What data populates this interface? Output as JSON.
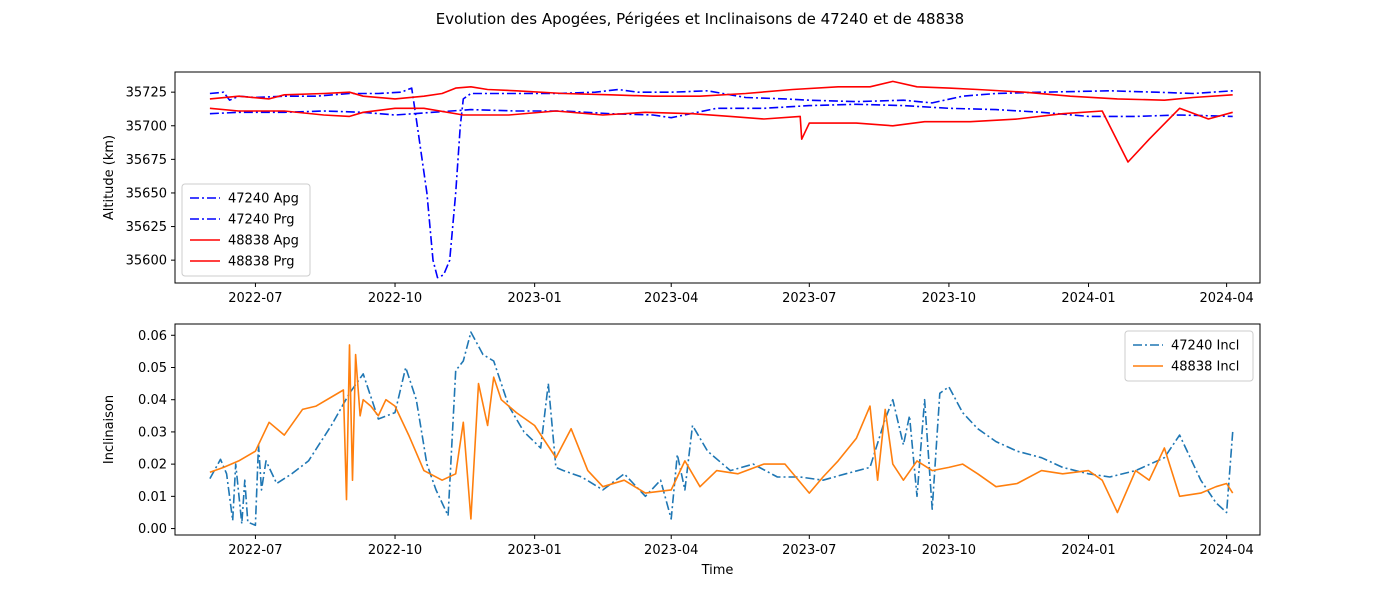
{
  "figure_title": "Evolution des Apogées, Périgées et Inclinaisons de 47240 et de 48838",
  "chart_data": [
    {
      "type": "line",
      "ylabel": "Altitude (km)",
      "xlabel": "",
      "ylim": [
        35583,
        35740
      ],
      "xlim": [
        "2022-05-09",
        "2024-04-23"
      ],
      "yticks": [
        35600,
        35625,
        35650,
        35675,
        35700,
        35725
      ],
      "xticks": [
        "2022-07",
        "2022-10",
        "2023-01",
        "2023-04",
        "2023-07",
        "2023-10",
        "2024-01",
        "2024-04"
      ],
      "grid": false,
      "legend_position": "lower-left",
      "series": [
        {
          "name": "47240 Apg",
          "color": "#0000ff",
          "style": "dashdot",
          "x": [
            "2022-06-01",
            "2022-06-10",
            "2022-06-14",
            "2022-06-20",
            "2022-07-01",
            "2022-07-20",
            "2022-08-10",
            "2022-09-01",
            "2022-09-20",
            "2022-10-05",
            "2022-10-12",
            "2022-10-15",
            "2022-10-22",
            "2022-10-26",
            "2022-10-29",
            "2022-11-02",
            "2022-11-06",
            "2022-11-10",
            "2022-11-13",
            "2022-11-15",
            "2022-11-20",
            "2022-12-10",
            "2023-01-15",
            "2023-02-10",
            "2023-02-25",
            "2023-03-10",
            "2023-04-01",
            "2023-04-25",
            "2023-05-10",
            "2023-05-20",
            "2023-06-15",
            "2023-07-01",
            "2023-08-01",
            "2023-09-01",
            "2023-09-20",
            "2023-10-10",
            "2023-11-01",
            "2023-12-01",
            "2024-01-15",
            "2024-02-15",
            "2024-03-10",
            "2024-04-05"
          ],
          "y": [
            35724,
            35725,
            35719,
            35722,
            35721,
            35722,
            35722,
            35724,
            35724,
            35725,
            35728,
            35705,
            35650,
            35600,
            35587,
            35589,
            35600,
            35650,
            35700,
            35720,
            35724,
            35724,
            35724,
            35725,
            35727,
            35725,
            35725,
            35726,
            35723,
            35721,
            35720,
            35719,
            35718,
            35719,
            35717,
            35722,
            35724,
            35725,
            35726,
            35725,
            35724,
            35726
          ]
        },
        {
          "name": "47240 Prg",
          "color": "#0000ff",
          "style": "dashdot",
          "x": [
            "2022-06-01",
            "2022-06-20",
            "2022-07-20",
            "2022-08-15",
            "2022-09-10",
            "2022-10-01",
            "2022-11-20",
            "2022-12-20",
            "2023-01-20",
            "2023-02-20",
            "2023-03-20",
            "2023-04-01",
            "2023-05-01",
            "2023-06-01",
            "2023-07-01",
            "2023-08-01",
            "2023-09-01",
            "2023-10-01",
            "2023-11-01",
            "2023-12-01",
            "2024-01-01",
            "2024-02-01",
            "2024-03-01",
            "2024-04-05"
          ],
          "y": [
            35709,
            35710,
            35710,
            35711,
            35710,
            35708,
            35712,
            35711,
            35711,
            35709,
            35708,
            35706,
            35713,
            35713,
            35715,
            35716,
            35715,
            35713,
            35712,
            35710,
            35707,
            35707,
            35708,
            35707
          ]
        },
        {
          "name": "48838 Apg",
          "color": "#ff0000",
          "style": "solid",
          "x": [
            "2022-06-01",
            "2022-06-20",
            "2022-07-10",
            "2022-07-20",
            "2022-08-15",
            "2022-09-01",
            "2022-09-10",
            "2022-10-01",
            "2022-10-20",
            "2022-11-01",
            "2022-11-10",
            "2022-11-20",
            "2022-12-01",
            "2022-12-20",
            "2023-01-20",
            "2023-02-20",
            "2023-03-20",
            "2023-04-20",
            "2023-05-20",
            "2023-06-20",
            "2023-07-20",
            "2023-08-10",
            "2023-08-25",
            "2023-09-10",
            "2023-10-01",
            "2023-10-20",
            "2023-11-20",
            "2023-12-20",
            "2024-01-20",
            "2024-02-20",
            "2024-03-10",
            "2024-04-05"
          ],
          "y": [
            35720,
            35722,
            35720,
            35723,
            35724,
            35725,
            35722,
            35720,
            35722,
            35724,
            35728,
            35729,
            35727,
            35726,
            35724,
            35723,
            35722,
            35722,
            35724,
            35727,
            35729,
            35729,
            35733,
            35729,
            35728,
            35727,
            35725,
            35722,
            35720,
            35719,
            35721,
            35723
          ]
        },
        {
          "name": "48838 Prg",
          "color": "#ff0000",
          "style": "solid",
          "x": [
            "2022-06-01",
            "2022-06-20",
            "2022-07-20",
            "2022-08-15",
            "2022-09-01",
            "2022-09-10",
            "2022-10-01",
            "2022-10-20",
            "2022-11-15",
            "2022-12-15",
            "2023-01-15",
            "2023-02-15",
            "2023-03-15",
            "2023-04-15",
            "2023-05-10",
            "2023-06-01",
            "2023-06-25",
            "2023-06-26",
            "2023-07-01",
            "2023-08-01",
            "2023-08-25",
            "2023-09-15",
            "2023-10-15",
            "2023-11-15",
            "2023-12-15",
            "2024-01-10",
            "2024-01-27",
            "2024-02-10",
            "2024-03-01",
            "2024-03-20",
            "2024-04-05"
          ],
          "y": [
            35713,
            35711,
            35711,
            35708,
            35707,
            35710,
            35713,
            35713,
            35708,
            35708,
            35711,
            35708,
            35710,
            35709,
            35707,
            35705,
            35707,
            35690,
            35702,
            35702,
            35700,
            35703,
            35703,
            35705,
            35709,
            35711,
            35673,
            35690,
            35713,
            35705,
            35710
          ]
        }
      ]
    },
    {
      "type": "line",
      "ylabel": "Inclinaison",
      "xlabel": "Time",
      "ylim": [
        -0.002,
        0.0635
      ],
      "xlim": [
        "2022-05-09",
        "2024-04-23"
      ],
      "yticks": [
        "0.00",
        "0.01",
        "0.02",
        "0.03",
        "0.04",
        "0.05",
        "0.06"
      ],
      "xticks": [
        "2022-07",
        "2022-10",
        "2023-01",
        "2023-04",
        "2023-07",
        "2023-10",
        "2024-01",
        "2024-04"
      ],
      "grid": false,
      "legend_position": "top-right",
      "series": [
        {
          "name": "47240 Incl",
          "color": "#1f77b4",
          "style": "dashdot",
          "x": [
            "2022-06-01",
            "2022-06-08",
            "2022-06-12",
            "2022-06-16",
            "2022-06-18",
            "2022-06-22",
            "2022-06-24",
            "2022-06-26",
            "2022-07-01",
            "2022-07-03",
            "2022-07-05",
            "2022-07-08",
            "2022-07-15",
            "2022-07-25",
            "2022-08-05",
            "2022-08-20",
            "2022-09-01",
            "2022-09-10",
            "2022-09-20",
            "2022-10-01",
            "2022-10-08",
            "2022-10-15",
            "2022-10-22",
            "2022-10-28",
            "2022-11-05",
            "2022-11-10",
            "2022-11-15",
            "2022-11-20",
            "2022-11-28",
            "2022-12-05",
            "2022-12-15",
            "2022-12-25",
            "2023-01-05",
            "2023-01-10",
            "2023-01-15",
            "2023-01-20",
            "2023-02-01",
            "2023-02-15",
            "2023-03-01",
            "2023-03-15",
            "2023-03-25",
            "2023-04-01",
            "2023-04-05",
            "2023-04-10",
            "2023-04-15",
            "2023-04-25",
            "2023-05-10",
            "2023-05-25",
            "2023-06-10",
            "2023-06-25",
            "2023-07-10",
            "2023-07-25",
            "2023-08-10",
            "2023-08-20",
            "2023-08-25",
            "2023-09-01",
            "2023-09-05",
            "2023-09-10",
            "2023-09-15",
            "2023-09-20",
            "2023-09-25",
            "2023-10-01",
            "2023-10-10",
            "2023-10-20",
            "2023-11-01",
            "2023-11-15",
            "2023-12-01",
            "2023-12-15",
            "2024-01-01",
            "2024-01-15",
            "2024-02-01",
            "2024-02-20",
            "2024-03-01",
            "2024-03-15",
            "2024-03-25",
            "2024-04-01",
            "2024-04-05"
          ],
          "y": [
            0.0155,
            0.0215,
            0.017,
            0.0025,
            0.02,
            0.0015,
            0.015,
            0.002,
            0.001,
            0.026,
            0.012,
            0.021,
            0.014,
            0.017,
            0.021,
            0.032,
            0.042,
            0.048,
            0.034,
            0.036,
            0.05,
            0.04,
            0.02,
            0.012,
            0.004,
            0.049,
            0.052,
            0.061,
            0.054,
            0.052,
            0.038,
            0.03,
            0.025,
            0.045,
            0.019,
            0.018,
            0.016,
            0.012,
            0.017,
            0.01,
            0.015,
            0.003,
            0.023,
            0.012,
            0.032,
            0.024,
            0.018,
            0.02,
            0.016,
            0.016,
            0.015,
            0.017,
            0.019,
            0.034,
            0.04,
            0.026,
            0.035,
            0.01,
            0.04,
            0.006,
            0.042,
            0.044,
            0.036,
            0.031,
            0.027,
            0.024,
            0.022,
            0.019,
            0.017,
            0.016,
            0.018,
            0.022,
            0.029,
            0.015,
            0.008,
            0.005,
            0.03
          ]
        },
        {
          "name": "48838 Incl",
          "color": "#ff7f0e",
          "style": "solid",
          "x": [
            "2022-06-01",
            "2022-06-10",
            "2022-06-20",
            "2022-07-01",
            "2022-07-10",
            "2022-07-20",
            "2022-08-01",
            "2022-08-10",
            "2022-08-28",
            "2022-08-30",
            "2022-09-01",
            "2022-09-03",
            "2022-09-05",
            "2022-09-08",
            "2022-09-10",
            "2022-09-15",
            "2022-09-20",
            "2022-09-25",
            "2022-10-01",
            "2022-10-10",
            "2022-10-20",
            "2022-11-01",
            "2022-11-10",
            "2022-11-15",
            "2022-11-20",
            "2022-11-25",
            "2022-12-01",
            "2022-12-05",
            "2022-12-10",
            "2022-12-20",
            "2023-01-01",
            "2023-01-15",
            "2023-01-25",
            "2023-02-05",
            "2023-02-15",
            "2023-03-01",
            "2023-03-15",
            "2023-04-01",
            "2023-04-10",
            "2023-04-20",
            "2023-05-01",
            "2023-05-15",
            "2023-06-01",
            "2023-06-15",
            "2023-07-01",
            "2023-07-10",
            "2023-07-20",
            "2023-08-01",
            "2023-08-10",
            "2023-08-15",
            "2023-08-20",
            "2023-08-25",
            "2023-09-01",
            "2023-09-10",
            "2023-09-20",
            "2023-10-01",
            "2023-10-10",
            "2023-10-20",
            "2023-11-01",
            "2023-11-15",
            "2023-12-01",
            "2023-12-15",
            "2024-01-01",
            "2024-01-10",
            "2024-01-20",
            "2024-02-01",
            "2024-02-10",
            "2024-02-20",
            "2024-03-01",
            "2024-03-15",
            "2024-03-25",
            "2024-04-01",
            "2024-04-05"
          ],
          "y": [
            0.0175,
            0.019,
            0.021,
            0.024,
            0.033,
            0.029,
            0.037,
            0.038,
            0.043,
            0.009,
            0.057,
            0.015,
            0.054,
            0.035,
            0.04,
            0.038,
            0.035,
            0.04,
            0.038,
            0.029,
            0.018,
            0.015,
            0.017,
            0.033,
            0.003,
            0.045,
            0.032,
            0.047,
            0.04,
            0.036,
            0.032,
            0.022,
            0.031,
            0.018,
            0.013,
            0.015,
            0.011,
            0.012,
            0.021,
            0.013,
            0.018,
            0.017,
            0.02,
            0.02,
            0.011,
            0.016,
            0.021,
            0.028,
            0.038,
            0.015,
            0.037,
            0.02,
            0.015,
            0.021,
            0.018,
            0.019,
            0.02,
            0.017,
            0.013,
            0.014,
            0.018,
            0.017,
            0.018,
            0.015,
            0.005,
            0.018,
            0.015,
            0.025,
            0.01,
            0.011,
            0.013,
            0.014,
            0.011
          ]
        }
      ]
    }
  ]
}
